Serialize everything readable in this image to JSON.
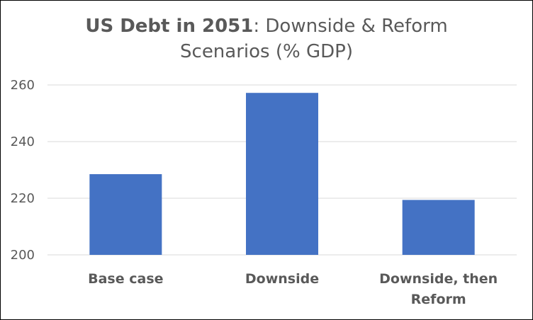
{
  "chart_data": {
    "type": "bar",
    "title_bold": "US Debt in 2051",
    "title_rest": ": Downside & Reform",
    "title_line2": "Scenarios (% GDP)",
    "categories": [
      "Base case",
      "Downside",
      "Downside, then Reform"
    ],
    "category_lines": [
      [
        "Base case"
      ],
      [
        "Downside"
      ],
      [
        "Downside, then",
        "Reform"
      ]
    ],
    "values": [
      228.5,
      257.2,
      219.4
    ],
    "ylim": [
      200,
      260
    ],
    "yticks": [
      200,
      220,
      240,
      260
    ],
    "grid": true,
    "legend": "none",
    "bar_color": "#4472C4",
    "grid_color": "#D9D9D9",
    "text_color": "#595959"
  }
}
